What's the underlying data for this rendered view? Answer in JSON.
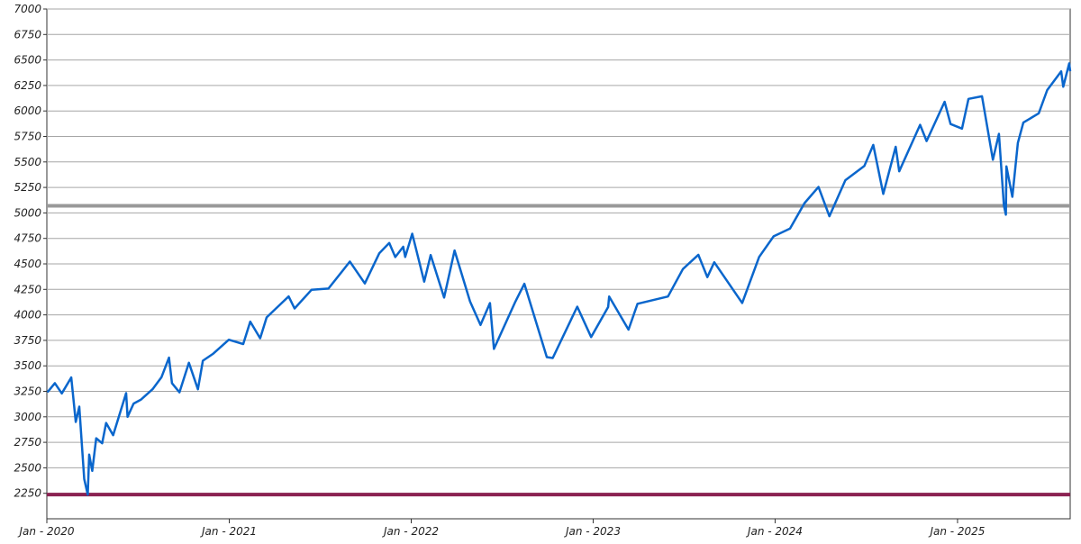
{
  "chart_data": {
    "type": "line",
    "title": "",
    "xlabel": "",
    "ylabel": "",
    "x_range": [
      "2020-01-01",
      "2025-08-15"
    ],
    "ylim": [
      2000,
      7000
    ],
    "grid": "horizontal",
    "yticks": [
      2250,
      2500,
      2750,
      3000,
      3250,
      3500,
      3750,
      4000,
      4250,
      4500,
      4750,
      5000,
      5250,
      5500,
      5750,
      6000,
      6250,
      6500,
      6750,
      7000
    ],
    "xticks": [
      {
        "date": "2020-01-01",
        "label": "Jan - 2020"
      },
      {
        "date": "2021-01-01",
        "label": "Jan - 2021"
      },
      {
        "date": "2022-01-01",
        "label": "Jan - 2022"
      },
      {
        "date": "2023-01-01",
        "label": "Jan - 2023"
      },
      {
        "date": "2024-01-01",
        "label": "Jan - 2024"
      },
      {
        "date": "2025-01-01",
        "label": "Jan - 2025"
      }
    ],
    "reference_lines": [
      {
        "value": 5070,
        "color": "#999999"
      },
      {
        "value": 2237,
        "color": "#8b2252"
      }
    ],
    "series": [
      {
        "color": "#0a66cc",
        "points": [
          [
            "2020-01-02",
            3240
          ],
          [
            "2020-01-17",
            3330
          ],
          [
            "2020-01-31",
            3230
          ],
          [
            "2020-02-19",
            3386
          ],
          [
            "2020-02-28",
            2950
          ],
          [
            "2020-03-06",
            3100
          ],
          [
            "2020-03-16",
            2390
          ],
          [
            "2020-03-23",
            2237
          ],
          [
            "2020-03-26",
            2630
          ],
          [
            "2020-04-01",
            2470
          ],
          [
            "2020-04-09",
            2790
          ],
          [
            "2020-04-21",
            2740
          ],
          [
            "2020-04-29",
            2940
          ],
          [
            "2020-05-13",
            2820
          ],
          [
            "2020-06-08",
            3232
          ],
          [
            "2020-06-11",
            3000
          ],
          [
            "2020-06-23",
            3130
          ],
          [
            "2020-07-08",
            3170
          ],
          [
            "2020-07-31",
            3270
          ],
          [
            "2020-08-18",
            3390
          ],
          [
            "2020-09-02",
            3580
          ],
          [
            "2020-09-08",
            3330
          ],
          [
            "2020-09-23",
            3240
          ],
          [
            "2020-10-12",
            3530
          ],
          [
            "2020-10-30",
            3270
          ],
          [
            "2020-11-09",
            3550
          ],
          [
            "2020-11-30",
            3620
          ],
          [
            "2020-12-31",
            3756
          ],
          [
            "2021-01-29",
            3714
          ],
          [
            "2021-02-12",
            3934
          ],
          [
            "2021-03-04",
            3770
          ],
          [
            "2021-03-17",
            3975
          ],
          [
            "2021-04-30",
            4181
          ],
          [
            "2021-05-12",
            4063
          ],
          [
            "2021-06-15",
            4246
          ],
          [
            "2021-07-19",
            4258
          ],
          [
            "2021-08-31",
            4523
          ],
          [
            "2021-09-30",
            4308
          ],
          [
            "2021-10-29",
            4605
          ],
          [
            "2021-11-18",
            4705
          ],
          [
            "2021-11-30",
            4567
          ],
          [
            "2021-12-16",
            4668
          ],
          [
            "2021-12-20",
            4568
          ],
          [
            "2022-01-03",
            4796
          ],
          [
            "2022-01-27",
            4326
          ],
          [
            "2022-02-09",
            4587
          ],
          [
            "2022-03-08",
            4170
          ],
          [
            "2022-03-29",
            4632
          ],
          [
            "2022-04-29",
            4132
          ],
          [
            "2022-05-20",
            3901
          ],
          [
            "2022-06-08",
            4116
          ],
          [
            "2022-06-16",
            3666
          ],
          [
            "2022-07-29",
            4130
          ],
          [
            "2022-08-16",
            4305
          ],
          [
            "2022-09-30",
            3586
          ],
          [
            "2022-10-12",
            3577
          ],
          [
            "2022-11-30",
            4080
          ],
          [
            "2022-12-28",
            3783
          ],
          [
            "2023-01-31",
            4077
          ],
          [
            "2023-02-02",
            4179
          ],
          [
            "2023-03-13",
            3855
          ],
          [
            "2023-03-31",
            4109
          ],
          [
            "2023-05-31",
            4180
          ],
          [
            "2023-06-30",
            4450
          ],
          [
            "2023-07-31",
            4589
          ],
          [
            "2023-08-18",
            4370
          ],
          [
            "2023-09-01",
            4516
          ],
          [
            "2023-10-27",
            4117
          ],
          [
            "2023-11-30",
            4568
          ],
          [
            "2023-12-29",
            4770
          ],
          [
            "2024-01-31",
            4846
          ],
          [
            "2024-02-29",
            5096
          ],
          [
            "2024-03-28",
            5254
          ],
          [
            "2024-04-19",
            4967
          ],
          [
            "2024-05-21",
            5321
          ],
          [
            "2024-06-28",
            5460
          ],
          [
            "2024-07-16",
            5667
          ],
          [
            "2024-08-05",
            5186
          ],
          [
            "2024-08-30",
            5648
          ],
          [
            "2024-09-06",
            5408
          ],
          [
            "2024-10-18",
            5864
          ],
          [
            "2024-10-31",
            5705
          ],
          [
            "2024-12-06",
            6090
          ],
          [
            "2024-12-18",
            5872
          ],
          [
            "2025-01-10",
            5827
          ],
          [
            "2025-01-23",
            6118
          ],
          [
            "2025-02-19",
            6144
          ],
          [
            "2025-03-13",
            5521
          ],
          [
            "2025-03-25",
            5776
          ],
          [
            "2025-04-04",
            5074
          ],
          [
            "2025-04-08",
            4982
          ],
          [
            "2025-04-09",
            5456
          ],
          [
            "2025-04-21",
            5158
          ],
          [
            "2025-05-02",
            5686
          ],
          [
            "2025-05-13",
            5886
          ],
          [
            "2025-06-13",
            5977
          ],
          [
            "2025-06-30",
            6205
          ],
          [
            "2025-07-28",
            6389
          ],
          [
            "2025-08-01",
            6238
          ],
          [
            "2025-08-13",
            6466
          ],
          [
            "2025-08-15",
            6390
          ]
        ]
      }
    ]
  }
}
